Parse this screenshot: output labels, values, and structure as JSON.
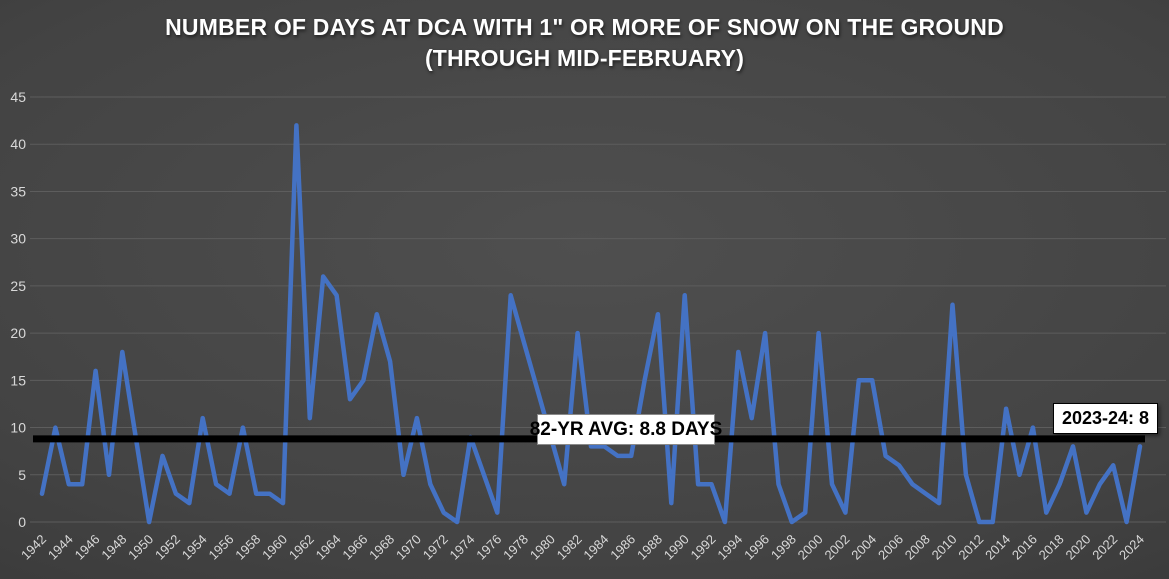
{
  "title": {
    "line1": "NUMBER OF DAYS AT DCA WITH 1\" OR MORE OF SNOW ON THE GROUND",
    "line2": "(THROUGH MID-FEBRUARY)"
  },
  "annotations": {
    "avg_label": "82-YR AVG: 8.8 DAYS",
    "latest_label": "2023-24: 8"
  },
  "colors": {
    "series": "#4472C4",
    "average_line": "#000000",
    "gridline": "#5d5d5d",
    "axis_text": "#d9d9d9",
    "title_text": "#ffffff",
    "background_center": "#4f4f4f",
    "background_edge": "#2e2e2e"
  },
  "chart_data": {
    "type": "line",
    "title": "NUMBER OF DAYS AT DCA WITH 1\" OR MORE OF SNOW ON THE GROUND (THROUGH MID-FEBRUARY)",
    "xlabel": "",
    "ylabel": "",
    "ylim": [
      0,
      45
    ],
    "yticks": [
      0,
      5,
      10,
      15,
      20,
      25,
      30,
      35,
      40,
      45
    ],
    "xtick_step": 2,
    "grid": true,
    "legend_position": "none",
    "average_line": 8.8,
    "years": [
      1942,
      1943,
      1944,
      1945,
      1946,
      1947,
      1948,
      1949,
      1950,
      1951,
      1952,
      1953,
      1954,
      1955,
      1956,
      1957,
      1958,
      1959,
      1960,
      1961,
      1962,
      1963,
      1964,
      1965,
      1966,
      1967,
      1968,
      1969,
      1970,
      1971,
      1972,
      1973,
      1974,
      1975,
      1976,
      1977,
      1978,
      1979,
      1980,
      1981,
      1982,
      1983,
      1984,
      1985,
      1986,
      1987,
      1988,
      1989,
      1990,
      1991,
      1992,
      1993,
      1994,
      1995,
      1996,
      1997,
      1998,
      1999,
      2000,
      2001,
      2002,
      2003,
      2004,
      2005,
      2006,
      2007,
      2008,
      2009,
      2010,
      2011,
      2012,
      2013,
      2014,
      2015,
      2016,
      2017,
      2018,
      2019,
      2020,
      2021,
      2022,
      2023,
      2024
    ],
    "values": [
      3,
      10,
      4,
      4,
      16,
      5,
      18,
      9,
      0,
      7,
      3,
      2,
      11,
      4,
      3,
      10,
      3,
      3,
      2,
      42,
      11,
      26,
      24,
      13,
      15,
      22,
      17,
      5,
      11,
      4,
      1,
      0,
      9,
      5,
      1,
      24,
      19,
      14,
      9,
      4,
      20,
      8,
      8,
      7,
      7,
      15,
      22,
      2,
      24,
      4,
      4,
      0,
      18,
      11,
      20,
      4,
      0,
      1,
      20,
      4,
      1,
      15,
      15,
      7,
      6,
      4,
      3,
      2,
      23,
      5,
      0,
      0,
      12,
      5,
      10,
      1,
      4,
      8,
      1,
      4,
      6,
      0,
      8
    ]
  }
}
